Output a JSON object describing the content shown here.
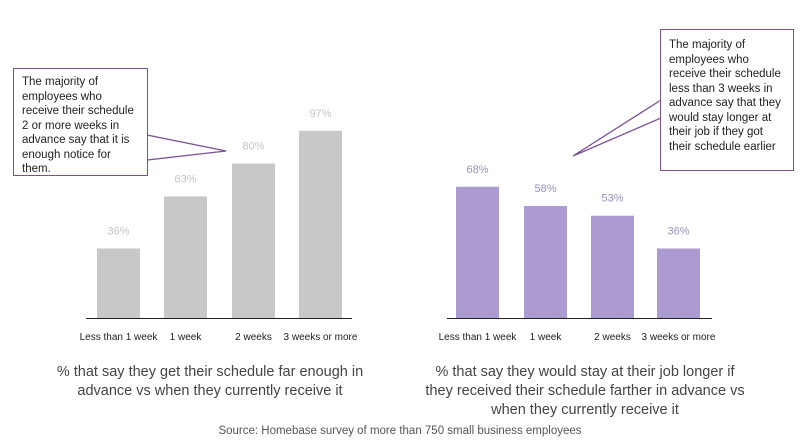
{
  "chart_data": [
    {
      "type": "bar",
      "categories": [
        "Less than 1 week",
        "1 week",
        "2 weeks",
        "3 weeks or more"
      ],
      "values": [
        36,
        63,
        80,
        97
      ],
      "value_labels": [
        "36%",
        "63%",
        "80%",
        "97%"
      ],
      "ylim": [
        0,
        100
      ],
      "grid": false,
      "color": "#c8c8c8",
      "label_color": "#c4c4c4",
      "caption": "% that say they get their schedule far enough in advance vs when they currently receive it",
      "callout": "The majority of employees who receive their schedule 2 or more weeks in advance say that it is enough notice for them."
    },
    {
      "type": "bar",
      "categories": [
        "Less than 1 week",
        "1 week",
        "2 weeks",
        "3 weeks or more"
      ],
      "values": [
        68,
        58,
        53,
        36
      ],
      "value_labels": [
        "68%",
        "58%",
        "53%",
        "36%"
      ],
      "ylim": [
        0,
        100
      ],
      "grid": false,
      "color": "#ab9bd1",
      "label_color": "#9a8fbf",
      "caption": "% that say they would stay at their job longer if they received their schedule farther in advance vs when they currently receive it",
      "callout": "The majority of employees who receive their schedule less than 3 weeks in advance say that they would stay longer at their job if they got their schedule earlier"
    }
  ],
  "source": "Source: Homebase survey of more than 750 small business employees",
  "colors": {
    "callout_border": "#7b4f94",
    "axis": "#222222"
  }
}
